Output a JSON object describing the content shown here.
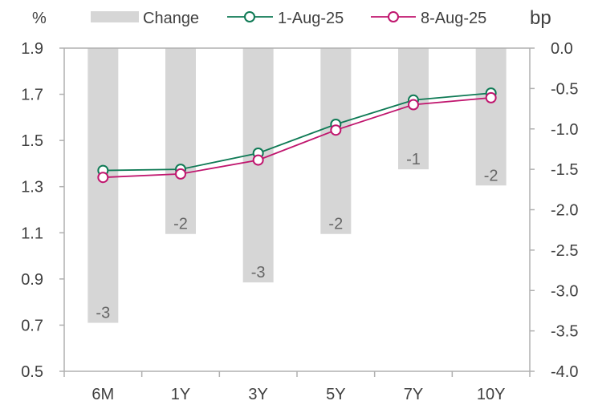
{
  "chart_data": {
    "type": "bar",
    "categories": [
      "6M",
      "1Y",
      "3Y",
      "5Y",
      "7Y",
      "10Y"
    ],
    "left_axis_unit": "%",
    "right_axis_unit": "bp",
    "left_ylim": [
      0.5,
      1.9
    ],
    "left_ticks": [
      "0.5",
      "0.7",
      "0.9",
      "1.1",
      "1.3",
      "1.5",
      "1.7",
      "1.9"
    ],
    "right_ylim": [
      -4.0,
      0.0
    ],
    "right_ticks": [
      "-4.0",
      "-3.5",
      "-3.0",
      "-2.5",
      "-2.0",
      "-1.5",
      "-1.0",
      "-0.5",
      "0.0"
    ],
    "grid": false,
    "legend_position": "top",
    "bar_series": {
      "name": "Change",
      "axis": "right",
      "values": [
        -3.4,
        -2.3,
        -2.9,
        -2.3,
        -1.5,
        -1.7
      ],
      "labels": [
        "-3",
        "-2",
        "-3",
        "-2",
        "-1",
        "-2"
      ],
      "color": "#d6d6d6"
    },
    "line_series": [
      {
        "name": "1-Aug-25",
        "axis": "left",
        "values": [
          1.37,
          1.375,
          1.445,
          1.57,
          1.675,
          1.705
        ],
        "color": "#0f7a55"
      },
      {
        "name": "8-Aug-25",
        "axis": "left",
        "values": [
          1.34,
          1.355,
          1.415,
          1.545,
          1.655,
          1.685
        ],
        "color": "#c0166e"
      }
    ]
  }
}
